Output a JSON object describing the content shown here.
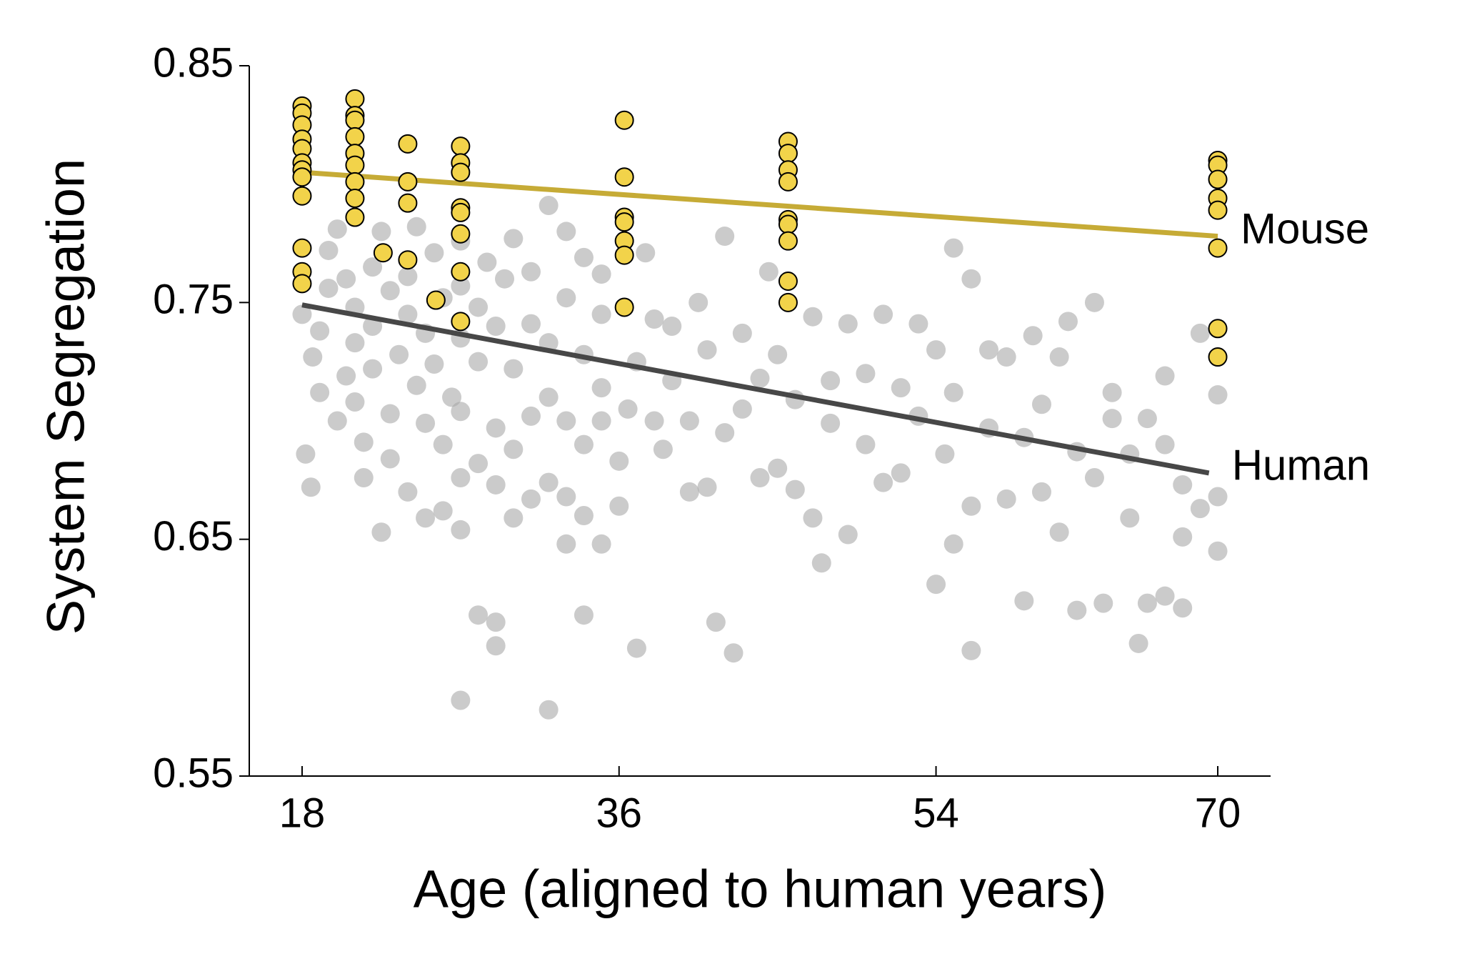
{
  "chart_data": {
    "type": "scatter",
    "xlabel": "Age (aligned to human years)",
    "ylabel": "System Segregation",
    "xlim": [
      15,
      73
    ],
    "ylim": [
      0.55,
      0.85
    ],
    "xticks": [
      18,
      36,
      54,
      70
    ],
    "yticks": [
      0.55,
      0.65,
      0.75,
      0.85
    ],
    "grid": false,
    "series": [
      {
        "name": "Human",
        "color": "#a9a9a9",
        "fit_color": "#474747",
        "x": [
          18,
          18.2,
          18.5,
          18.6,
          19,
          19,
          19.5,
          19.5,
          20,
          20,
          20.5,
          20.5,
          21,
          21,
          21,
          21.5,
          21.5,
          22,
          22,
          22,
          22.5,
          22.5,
          23,
          23,
          23,
          23.5,
          24,
          24,
          24,
          24.5,
          24.5,
          25,
          25,
          25,
          25.5,
          25.5,
          26,
          26,
          26,
          26.5,
          27,
          27,
          27,
          27,
          27,
          27,
          27,
          28,
          28,
          28,
          28,
          28.5,
          29,
          29,
          29,
          29,
          29,
          29.5,
          30,
          30,
          30,
          30,
          31,
          31,
          31,
          31,
          32,
          32,
          32,
          32,
          32,
          33,
          33,
          33,
          33,
          33,
          34,
          34,
          34,
          34,
          34,
          35,
          35,
          35,
          35,
          35,
          36,
          36,
          36.5,
          37,
          37,
          37.5,
          38,
          38,
          38.5,
          39,
          39,
          40,
          40,
          40.5,
          41,
          41,
          41.5,
          42,
          42,
          42.5,
          43,
          43,
          44,
          44,
          44.5,
          45,
          45,
          46,
          46,
          47,
          47,
          47.5,
          48,
          48,
          49,
          49,
          50,
          50,
          51,
          51,
          52,
          52,
          53,
          53,
          54,
          54,
          54.5,
          55,
          55,
          55,
          56,
          56,
          56,
          57,
          57,
          58,
          58,
          59,
          59,
          59.5,
          60,
          60,
          61,
          61,
          61.5,
          62,
          62,
          63,
          63,
          63.5,
          64,
          64,
          65,
          65,
          65.5,
          66,
          66,
          67,
          67,
          67,
          68,
          68,
          68,
          69,
          69,
          70,
          70,
          70
        ],
        "values": [
          0.745,
          0.686,
          0.672,
          0.727,
          0.712,
          0.738,
          0.756,
          0.772,
          0.781,
          0.7,
          0.719,
          0.76,
          0.733,
          0.748,
          0.708,
          0.691,
          0.676,
          0.765,
          0.722,
          0.74,
          0.653,
          0.78,
          0.755,
          0.703,
          0.684,
          0.728,
          0.67,
          0.745,
          0.761,
          0.782,
          0.715,
          0.699,
          0.659,
          0.737,
          0.771,
          0.724,
          0.662,
          0.752,
          0.69,
          0.71,
          0.582,
          0.654,
          0.676,
          0.704,
          0.735,
          0.757,
          0.776,
          0.618,
          0.682,
          0.725,
          0.748,
          0.767,
          0.605,
          0.615,
          0.673,
          0.697,
          0.74,
          0.76,
          0.659,
          0.688,
          0.722,
          0.777,
          0.667,
          0.702,
          0.741,
          0.763,
          0.578,
          0.674,
          0.71,
          0.733,
          0.791,
          0.648,
          0.668,
          0.7,
          0.752,
          0.78,
          0.618,
          0.66,
          0.69,
          0.728,
          0.769,
          0.648,
          0.7,
          0.714,
          0.745,
          0.762,
          0.664,
          0.683,
          0.705,
          0.604,
          0.725,
          0.771,
          0.743,
          0.7,
          0.688,
          0.717,
          0.74,
          0.67,
          0.7,
          0.75,
          0.672,
          0.73,
          0.615,
          0.695,
          0.778,
          0.602,
          0.705,
          0.737,
          0.676,
          0.718,
          0.763,
          0.728,
          0.68,
          0.671,
          0.709,
          0.744,
          0.659,
          0.64,
          0.717,
          0.699,
          0.652,
          0.741,
          0.69,
          0.72,
          0.745,
          0.674,
          0.714,
          0.678,
          0.741,
          0.702,
          0.631,
          0.73,
          0.686,
          0.773,
          0.712,
          0.648,
          0.664,
          0.603,
          0.76,
          0.73,
          0.697,
          0.667,
          0.727,
          0.624,
          0.693,
          0.736,
          0.707,
          0.67,
          0.653,
          0.727,
          0.742,
          0.687,
          0.62,
          0.75,
          0.676,
          0.623,
          0.712,
          0.701,
          0.686,
          0.659,
          0.606,
          0.623,
          0.701,
          0.69,
          0.719,
          0.626,
          0.673,
          0.651,
          0.621,
          0.663,
          0.737,
          0.711,
          0.645,
          0.668
        ],
        "fit": {
          "x": [
            18,
            69.5
          ],
          "values": [
            0.749,
            0.678
          ]
        }
      },
      {
        "name": "Mouse",
        "color": "#f2d34a",
        "fit_color": "#c6ab36",
        "x": [
          18,
          18,
          18,
          18,
          18,
          18,
          18,
          18,
          18,
          18,
          18,
          18,
          21,
          21,
          21,
          21,
          21,
          21,
          21,
          21,
          21,
          22.6,
          24,
          24,
          24,
          24,
          25.6,
          27,
          27,
          27,
          27,
          27,
          27,
          27,
          27,
          36.3,
          36.3,
          36.3,
          36.3,
          36.3,
          36.3,
          36.3,
          45.6,
          45.6,
          45.6,
          45.6,
          45.6,
          45.6,
          45.6,
          45.6,
          45.6,
          70,
          70,
          70,
          70,
          70,
          70,
          70,
          70
        ],
        "values": [
          0.833,
          0.83,
          0.825,
          0.819,
          0.815,
          0.809,
          0.806,
          0.803,
          0.795,
          0.773,
          0.763,
          0.758,
          0.836,
          0.829,
          0.827,
          0.82,
          0.813,
          0.808,
          0.801,
          0.794,
          0.786,
          0.771,
          0.817,
          0.801,
          0.792,
          0.768,
          0.751,
          0.816,
          0.809,
          0.805,
          0.79,
          0.788,
          0.779,
          0.763,
          0.742,
          0.827,
          0.803,
          0.786,
          0.784,
          0.776,
          0.77,
          0.748,
          0.818,
          0.813,
          0.806,
          0.801,
          0.785,
          0.783,
          0.776,
          0.759,
          0.75,
          0.81,
          0.808,
          0.802,
          0.794,
          0.789,
          0.773,
          0.739,
          0.727
        ],
        "fit": {
          "x": [
            18,
            70
          ],
          "values": [
            0.805,
            0.778
          ]
        }
      }
    ]
  }
}
